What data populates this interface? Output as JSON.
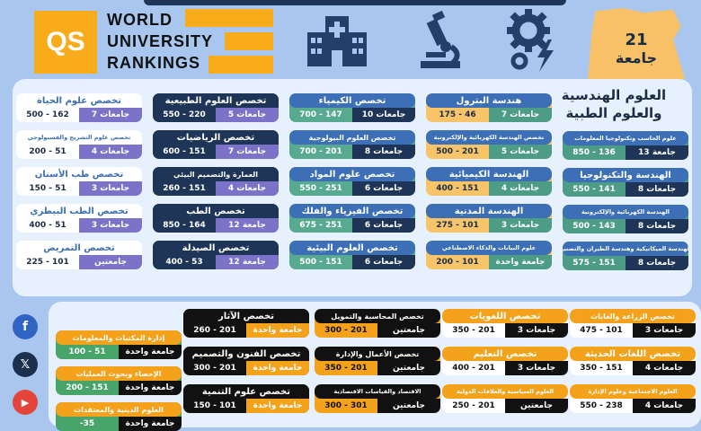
{
  "header": {
    "logo_text": "QS",
    "wur_lines": [
      "WORLD",
      "UNIVERSITY",
      "RANKINGS"
    ],
    "egypt_number": "21",
    "egypt_label": "جامعة"
  },
  "section1_title": "العلوم الهندسية والعلوم الطبية",
  "colors": {
    "accent": "#f8ac1b",
    "navy": "#1e3557",
    "blue": "#3c6fb5",
    "purple": "#7c73c9",
    "lilac": "#b9b2ef",
    "teal": "#4c9c86",
    "black": "#111111",
    "orange": "#f4a21c",
    "green": "#47a56a"
  },
  "section1": [
    {
      "title": "هندسة البترول",
      "count": "7 جامعات",
      "range": "175 - 46"
    },
    {
      "title": "تخصص الكيمياء",
      "count": "10 جامعات",
      "range": "700 - 147"
    },
    {
      "title": "تخصص العلوم الطبيعية",
      "count": "5 جامعات",
      "range": "550 - 220"
    },
    {
      "title": "تخصص علوم الحياة",
      "count": "7 جامعات",
      "range": "500 - 162"
    },
    {
      "title": "علوم الحاسب وتكنولوجيا المعلومات",
      "count": "13 جامعة",
      "range": "850 - 136"
    },
    {
      "title": "تخصص الهندسة الكهربائية والإلكترونية",
      "count": "5 جامعات",
      "range": "500 - 201"
    },
    {
      "title": "تخصص العلوم البيولوجية",
      "count": "8 جامعات",
      "range": "700 - 201"
    },
    {
      "title": "تخصص الرياضيات",
      "count": "7 جامعات",
      "range": "600 - 151"
    },
    {
      "title": "تخصص علوم التشريح والفسيولوجي",
      "count": "4 جامعات",
      "range": "200 - 51"
    },
    {
      "title": "الهندسة والتكنولوجيا",
      "count": "8 جامعات",
      "range": "550 - 141"
    },
    {
      "title": "الهندسة الكيميائية",
      "count": "4 جامعات",
      "range": "400 - 151"
    },
    {
      "title": "تخصص علوم المواد",
      "count": "6 جامعات",
      "range": "550 - 251"
    },
    {
      "title": "العمارة والتصميم البيئي",
      "count": "4 جامعات",
      "range": "260 - 151"
    },
    {
      "title": "تخصص طب الأسنان",
      "count": "3 جامعات",
      "range": "150 - 51"
    },
    {
      "title": "الهندسة الكهربائية والإلكترونية",
      "count": "8 جامعات",
      "range": "500 - 143"
    },
    {
      "title": "الهندسة المدنية",
      "count": "3 جامعات",
      "range": "275 - 101"
    },
    {
      "title": "تخصص الفيزياء والفلك",
      "count": "6 جامعات",
      "range": "675 - 251"
    },
    {
      "title": "تخصص الطب",
      "count": "12 جامعة",
      "range": "850 - 164"
    },
    {
      "title": "تخصص الطب البيطري",
      "count": "3 جامعات",
      "range": "400 - 51"
    },
    {
      "title": "الهندسة الميكانيكية وهندسة الطيران والتصنيع",
      "count": "8 جامعات",
      "range": "575 - 151"
    },
    {
      "title": "علوم البيانات والذكاء الاصطناعي",
      "count": "جامعة واحدة",
      "range": "200 - 101"
    },
    {
      "title": "تخصص العلوم البيئية",
      "count": "6 جامعات",
      "range": "500 - 151"
    },
    {
      "title": "تخصص الصيدلة",
      "count": "12 جامعة",
      "range": "400 - 53"
    },
    {
      "title": "تخصص التمريض",
      "count": "جامعتين",
      "range": "225 - 101"
    }
  ],
  "section2": [
    {
      "title": "تخصص الزراعة والغابات",
      "count": "3 جامعات",
      "range": "475 - 101"
    },
    {
      "title": "تخصص اللغويات",
      "count": "3 جامعات",
      "range": "350 - 201"
    },
    {
      "title": "تخصص المحاسبة والتمويل",
      "count": "جامعتين",
      "range": "300 - 201"
    },
    {
      "title": "تخصص الآثار",
      "count": "جامعة واحدة",
      "range": "260 - 201"
    },
    {
      "title": "إدارة المكتبات والمعلومات",
      "count": "جامعة واحدة",
      "range": "100 - 51"
    },
    {
      "title": "تخصص اللغات الحديثة",
      "count": "4 جامعات",
      "range": "350 - 151"
    },
    {
      "title": "تخصص التعليم",
      "count": "3 جامعات",
      "range": "400 - 201"
    },
    {
      "title": "تخصص الأعمال والإدارة",
      "count": "جامعتين",
      "range": "350 - 201"
    },
    {
      "title": "تخصص الفنون والتصميم",
      "count": "جامعة واحدة",
      "range": "300 - 201"
    },
    {
      "title": "الإحصاء وبحوث العمليات",
      "count": "جامعة واحدة",
      "range": "200 - 151"
    },
    {
      "title": "العلوم الاجتماعية وعلوم الإدارة",
      "count": "4 جامعات",
      "range": "550 - 238"
    },
    {
      "title": "العلوم السياسية والعلاقات الدولية",
      "count": "جامعتين",
      "range": "250 - 201"
    },
    {
      "title": "الاقتصاد والقياسات الاقتصادية",
      "count": "جامعتين",
      "range": "300 - 301"
    },
    {
      "title": "تخصص علوم التنمية",
      "count": "جامعة واحدة",
      "range": "150 - 101"
    },
    {
      "title": "العلوم الدينية والمعتقدات",
      "count": "جامعة واحدة",
      "range": "-35"
    }
  ],
  "social": [
    "facebook-icon",
    "x-icon",
    "youtube-icon"
  ]
}
